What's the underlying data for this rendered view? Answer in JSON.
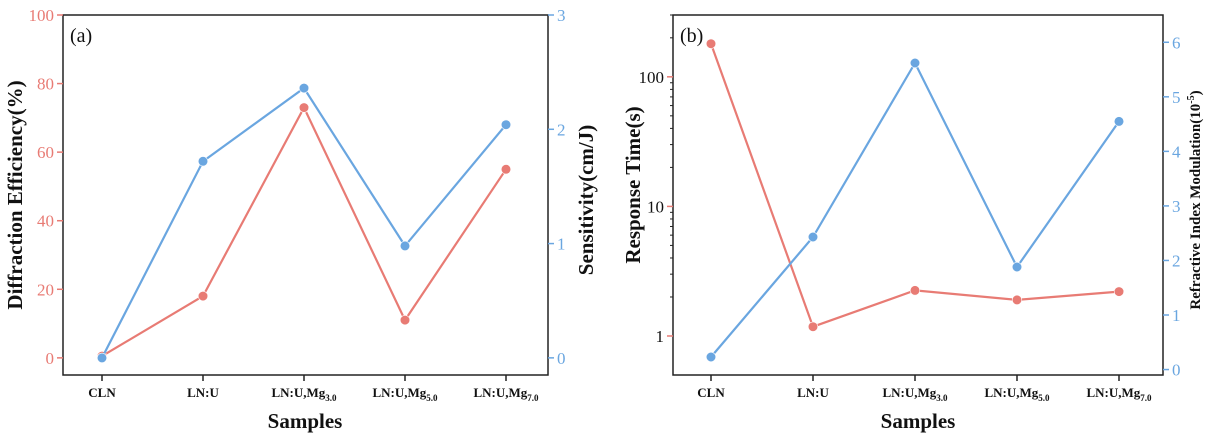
{
  "colors": {
    "left_series": "#e87b74",
    "right_series": "#6aa6e0",
    "axis": "#222222"
  },
  "chart_data": [
    {
      "type": "line",
      "panel_label": "(a)",
      "categories": [
        {
          "base": "CLN",
          "sub": ""
        },
        {
          "base": "LN:U",
          "sub": ""
        },
        {
          "base": "LN:U,Mg",
          "sub": "3.0"
        },
        {
          "base": "LN:U,Mg",
          "sub": "5.0"
        },
        {
          "base": "LN:U,Mg",
          "sub": "7.0"
        }
      ],
      "xlabel": "Samples",
      "ylabel_left": "Diffraction Efficiency(%)",
      "ylabel_right": "Sensitivity(cm/J)",
      "ylim_left": [
        -5,
        100
      ],
      "ylim_right": [
        -0.15,
        3
      ],
      "yticks_left": [
        0,
        20,
        40,
        60,
        80,
        100
      ],
      "yticks_right": [
        0,
        1,
        2,
        3
      ],
      "series": [
        {
          "axis": "left",
          "color": "#e87b74",
          "values": [
            0.5,
            18,
            73,
            11,
            55
          ]
        },
        {
          "axis": "right",
          "color": "#6aa6e0",
          "values": [
            0.0,
            1.72,
            2.36,
            0.98,
            2.04
          ]
        }
      ]
    },
    {
      "type": "line",
      "panel_label": "(b)",
      "categories": [
        {
          "base": "CLN",
          "sub": ""
        },
        {
          "base": "LN:U",
          "sub": ""
        },
        {
          "base": "LN:U,Mg",
          "sub": "3.0"
        },
        {
          "base": "LN:U,Mg",
          "sub": "5.0"
        },
        {
          "base": "LN:U,Mg",
          "sub": "7.0"
        }
      ],
      "xlabel": "Samples",
      "ylabel_left": "Response Time(s)",
      "ylabel_right_base": "Refractive Index Modulation(10",
      "ylabel_right_sup": "-5",
      "ylabel_right_end": ")",
      "yscale_left": "log",
      "ylim_left": [
        0.5,
        300
      ],
      "ylim_right": [
        -0.1,
        6.5
      ],
      "yticks_left": [
        1,
        10,
        100
      ],
      "yticks_right": [
        0,
        1,
        2,
        3,
        4,
        5,
        6
      ],
      "series": [
        {
          "axis": "left",
          "color": "#e87b74",
          "values": [
            180,
            1.18,
            2.25,
            1.9,
            2.2
          ]
        },
        {
          "axis": "right",
          "color": "#6aa6e0",
          "values": [
            0.23,
            2.43,
            5.62,
            1.88,
            4.55
          ]
        }
      ]
    }
  ]
}
